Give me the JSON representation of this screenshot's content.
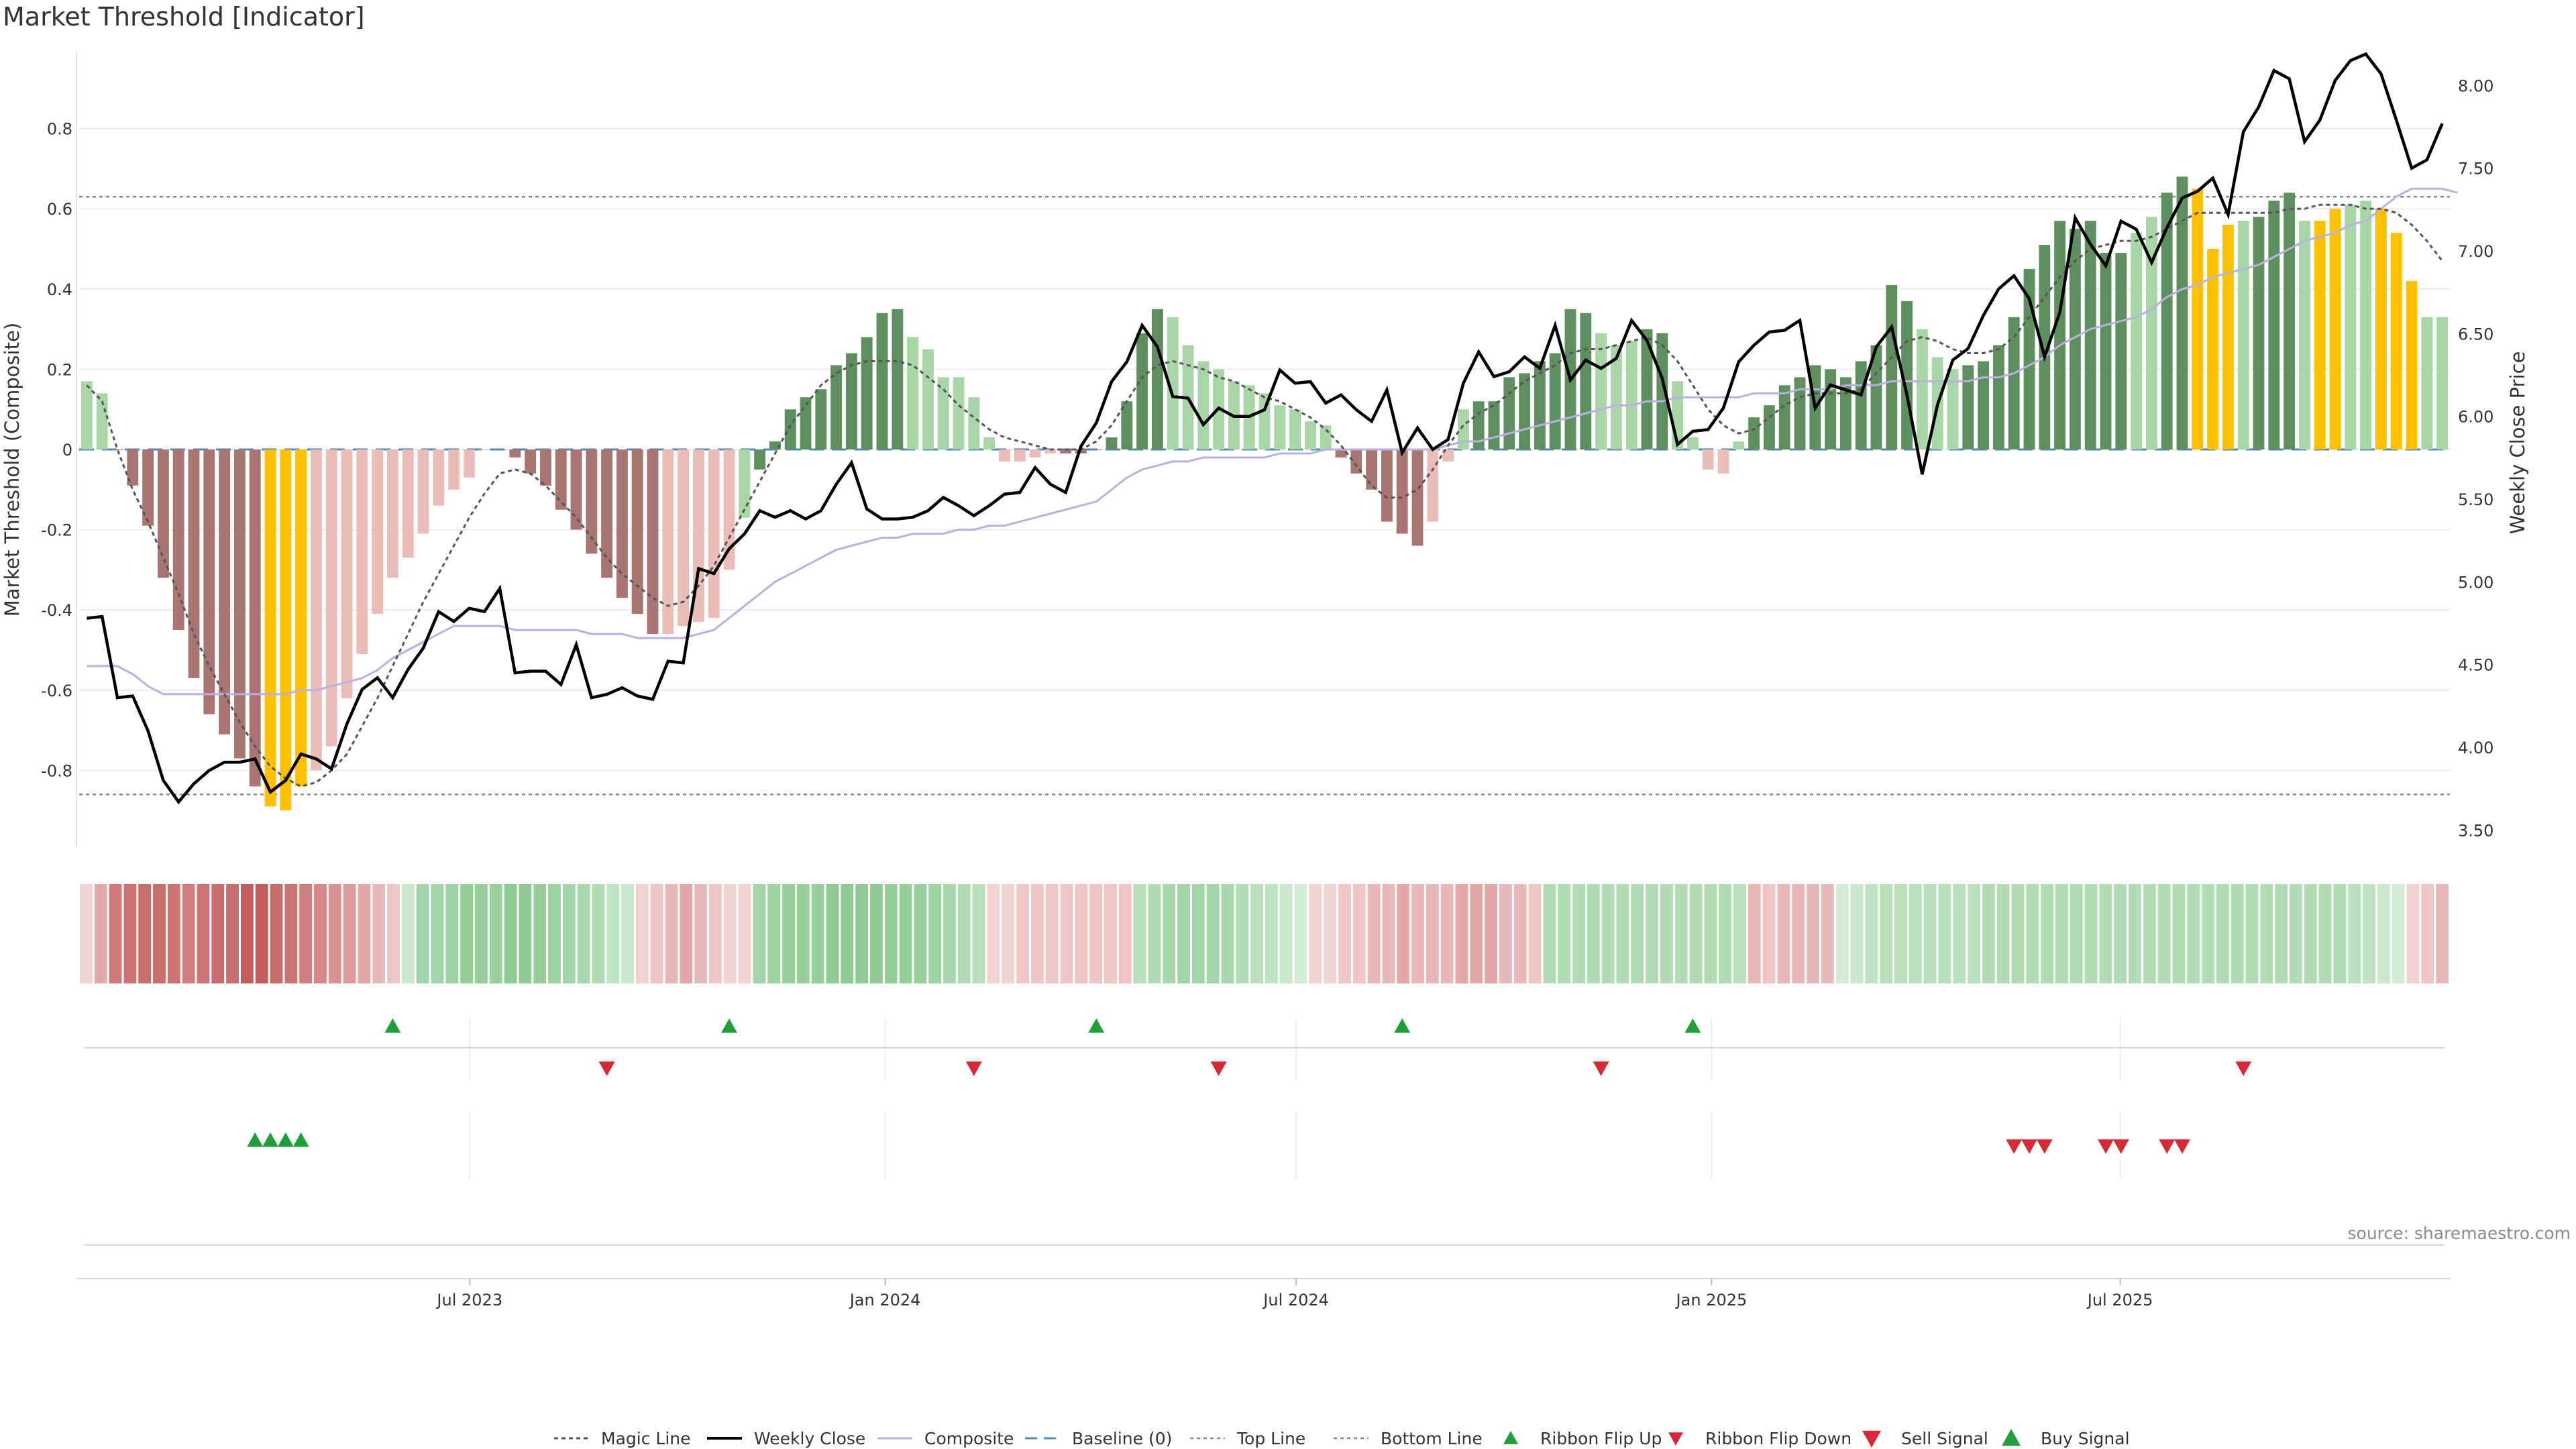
{
  "title": "Market Threshold [Indicator]",
  "source": "source: sharemaestro.com",
  "colors": {
    "bar_pos_strong": "#5f8f5f",
    "bar_pos_weak": "#a9d6a6",
    "bar_neg_strong": "#a87570",
    "bar_neg_weak": "#ebbdb7",
    "bar_extreme": "#ffc000",
    "magic_line": "#555555",
    "weekly_close": "#000000",
    "composite": "#b9b0e0",
    "baseline": "#4d89b8",
    "threshold_line": "#888888",
    "ribbon_up": "#1f9e3a",
    "ribbon_down": "#d62a36",
    "sell": "#d62a36",
    "buy": "#1f9e3a"
  },
  "legend": [
    {
      "key": "magic",
      "label": "Magic Line"
    },
    {
      "key": "close",
      "label": "Weekly Close"
    },
    {
      "key": "composite",
      "label": "Composite"
    },
    {
      "key": "baseline",
      "label": "Baseline (0)"
    },
    {
      "key": "top",
      "label": "Top Line"
    },
    {
      "key": "bottom",
      "label": "Bottom Line"
    },
    {
      "key": "ribbon_up",
      "label": "Ribbon Flip Up"
    },
    {
      "key": "ribbon_down",
      "label": "Ribbon Flip Down"
    },
    {
      "key": "sell",
      "label": "Sell Signal"
    },
    {
      "key": "buy",
      "label": "Buy Signal"
    }
  ],
  "chart_data": {
    "type": "bar",
    "title": "Market Threshold [Indicator]",
    "ylabel": "Market Threshold (Composite)",
    "y2label": "Weekly Close Price",
    "ylim": [
      -0.99,
      0.99
    ],
    "y2lim": [
      3.4,
      8.2
    ],
    "yticks": [
      "-0.8",
      "-0.6",
      "-0.4",
      "-0.2",
      "0",
      "0.2",
      "0.4",
      "0.6",
      "0.8"
    ],
    "y2ticks": [
      "3.50",
      "4.00",
      "4.50",
      "5.00",
      "5.50",
      "6.00",
      "6.50",
      "7.00",
      "7.50",
      "8.00"
    ],
    "x_start": "2023-01-09",
    "x_end": "2025-11-24",
    "xticks": [
      "Jul 2023",
      "Jan 2024",
      "Jul 2024",
      "Jan 2025",
      "Jul 2025"
    ],
    "top_line": 0.63,
    "bottom_line": -0.86,
    "baseline": 0,
    "grid": true,
    "legend_position": "bottom",
    "composite": [
      0.17,
      0.14,
      0.0,
      -0.09,
      -0.19,
      -0.32,
      -0.45,
      -0.57,
      -0.66,
      -0.71,
      -0.77,
      -0.84,
      -0.89,
      -0.9,
      -0.84,
      -0.8,
      -0.74,
      -0.62,
      -0.51,
      -0.41,
      -0.32,
      -0.27,
      -0.21,
      -0.14,
      -0.1,
      -0.07,
      -0.0,
      0.0,
      -0.02,
      -0.06,
      -0.09,
      -0.15,
      -0.2,
      -0.26,
      -0.32,
      -0.37,
      -0.41,
      -0.46,
      -0.46,
      -0.44,
      -0.43,
      -0.42,
      -0.3,
      -0.17,
      -0.05,
      0.02,
      0.1,
      0.13,
      0.15,
      0.21,
      0.24,
      0.28,
      0.34,
      0.35,
      0.28,
      0.25,
      0.18,
      0.18,
      0.13,
      0.03,
      -0.03,
      -0.03,
      -0.02,
      -0.01,
      -0.01,
      -0.01,
      0.0,
      0.03,
      0.12,
      0.29,
      0.35,
      0.33,
      0.26,
      0.22,
      0.2,
      0.17,
      0.16,
      0.14,
      0.11,
      0.1,
      0.07,
      0.06,
      -0.02,
      -0.06,
      -0.1,
      -0.18,
      -0.21,
      -0.24,
      -0.18,
      -0.03,
      0.1,
      0.12,
      0.12,
      0.18,
      0.19,
      0.22,
      0.24,
      0.35,
      0.34,
      0.29,
      0.26,
      0.27,
      0.3,
      0.29,
      0.17,
      0.03,
      -0.05,
      -0.06,
      0.02,
      0.08,
      0.11,
      0.16,
      0.18,
      0.21,
      0.2,
      0.18,
      0.22,
      0.26,
      0.41,
      0.37,
      0.3,
      0.23,
      0.2,
      0.21,
      0.22,
      0.26,
      0.33,
      0.45,
      0.51,
      0.57,
      0.55,
      0.57,
      0.49,
      0.49,
      0.54,
      0.58,
      0.64,
      0.68,
      0.65,
      0.5,
      0.56,
      0.57,
      0.58,
      0.62,
      0.64,
      0.57,
      0.57,
      0.6,
      0.61,
      0.62,
      0.6,
      0.54,
      0.42,
      0.33,
      0.33
    ],
    "bar_classes": [
      "w+",
      "w+",
      "s-",
      "s-",
      "s-",
      "s-",
      "s-",
      "s-",
      "s-",
      "s-",
      "s-",
      "s-",
      "ex",
      "ex",
      "ex",
      "w-",
      "w-",
      "w-",
      "w-",
      "w-",
      "w-",
      "w-",
      "w-",
      "w-",
      "w-",
      "w-",
      "w-",
      "s-",
      "s-",
      "s-",
      "s-",
      "s-",
      "s-",
      "s-",
      "s-",
      "s-",
      "s-",
      "s-",
      "w-",
      "w-",
      "w-",
      "w-",
      "w-",
      "w+",
      "s+",
      "s+",
      "s+",
      "s+",
      "s+",
      "s+",
      "s+",
      "s+",
      "s+",
      "s+",
      "w+",
      "w+",
      "w+",
      "w+",
      "w+",
      "w+",
      "w-",
      "w-",
      "w-",
      "w-",
      "s-",
      "s-",
      "s-",
      "s+",
      "s+",
      "s+",
      "s+",
      "w+",
      "w+",
      "w+",
      "w+",
      "w+",
      "w+",
      "w+",
      "w+",
      "w+",
      "w+",
      "w+",
      "s-",
      "s-",
      "s-",
      "s-",
      "s-",
      "s-",
      "w-",
      "w-",
      "w+",
      "s+",
      "s+",
      "s+",
      "s+",
      "s+",
      "s+",
      "s+",
      "s+",
      "w+",
      "w+",
      "w+",
      "s+",
      "s+",
      "w+",
      "w+",
      "w-",
      "w-",
      "w+",
      "s+",
      "s+",
      "s+",
      "s+",
      "s+",
      "s+",
      "s+",
      "s+",
      "s+",
      "s+",
      "s+",
      "w+",
      "w+",
      "w+",
      "s+",
      "s+",
      "s+",
      "s+",
      "s+",
      "s+",
      "s+",
      "s+",
      "s+",
      "s+",
      "s+",
      "w+",
      "w+",
      "s+",
      "s+",
      "ex",
      "ex",
      "ex",
      "w+",
      "s+",
      "s+",
      "s+",
      "w+",
      "ex",
      "ex",
      "w+",
      "w+",
      "ex",
      "ex",
      "ex",
      "w+",
      "w+",
      "w+",
      "w+",
      "s+"
    ],
    "magic_line": [
      0.16,
      0.12,
      0.0,
      -0.1,
      -0.18,
      -0.27,
      -0.36,
      -0.46,
      -0.54,
      -0.61,
      -0.68,
      -0.74,
      -0.79,
      -0.82,
      -0.84,
      -0.83,
      -0.8,
      -0.76,
      -0.69,
      -0.62,
      -0.54,
      -0.46,
      -0.38,
      -0.31,
      -0.24,
      -0.17,
      -0.11,
      -0.06,
      -0.05,
      -0.06,
      -0.09,
      -0.13,
      -0.17,
      -0.22,
      -0.27,
      -0.31,
      -0.34,
      -0.37,
      -0.39,
      -0.38,
      -0.34,
      -0.29,
      -0.22,
      -0.15,
      -0.08,
      -0.01,
      0.06,
      0.11,
      0.16,
      0.19,
      0.21,
      0.22,
      0.22,
      0.22,
      0.21,
      0.18,
      0.15,
      0.11,
      0.08,
      0.05,
      0.03,
      0.02,
      0.01,
      0.0,
      0.0,
      0.0,
      0.02,
      0.06,
      0.12,
      0.18,
      0.21,
      0.22,
      0.21,
      0.2,
      0.18,
      0.17,
      0.15,
      0.13,
      0.12,
      0.1,
      0.08,
      0.05,
      0.01,
      -0.04,
      -0.09,
      -0.12,
      -0.12,
      -0.1,
      -0.05,
      0.01,
      0.06,
      0.09,
      0.11,
      0.14,
      0.17,
      0.19,
      0.21,
      0.24,
      0.25,
      0.25,
      0.26,
      0.27,
      0.28,
      0.26,
      0.22,
      0.16,
      0.1,
      0.06,
      0.04,
      0.05,
      0.08,
      0.11,
      0.13,
      0.14,
      0.14,
      0.14,
      0.15,
      0.19,
      0.23,
      0.27,
      0.28,
      0.27,
      0.25,
      0.24,
      0.24,
      0.25,
      0.28,
      0.33,
      0.38,
      0.43,
      0.47,
      0.5,
      0.51,
      0.52,
      0.52,
      0.53,
      0.55,
      0.57,
      0.59,
      0.59,
      0.59,
      0.59,
      0.59,
      0.59,
      0.6,
      0.6,
      0.61,
      0.61,
      0.61,
      0.6,
      0.6,
      0.59,
      0.56,
      0.52,
      0.47
    ],
    "composite_line": [
      -0.54,
      -0.54,
      -0.54,
      -0.56,
      -0.59,
      -0.61,
      -0.61,
      -0.61,
      -0.61,
      -0.61,
      -0.61,
      -0.61,
      -0.61,
      -0.61,
      -0.6,
      -0.6,
      -0.59,
      -0.58,
      -0.57,
      -0.55,
      -0.52,
      -0.5,
      -0.48,
      -0.46,
      -0.44,
      -0.44,
      -0.44,
      -0.44,
      -0.45,
      -0.45,
      -0.45,
      -0.45,
      -0.45,
      -0.46,
      -0.46,
      -0.46,
      -0.47,
      -0.47,
      -0.47,
      -0.47,
      -0.46,
      -0.45,
      -0.42,
      -0.39,
      -0.36,
      -0.33,
      -0.31,
      -0.29,
      -0.27,
      -0.25,
      -0.24,
      -0.23,
      -0.22,
      -0.22,
      -0.21,
      -0.21,
      -0.21,
      -0.2,
      -0.2,
      -0.19,
      -0.19,
      -0.18,
      -0.17,
      -0.16,
      -0.15,
      -0.14,
      -0.13,
      -0.1,
      -0.07,
      -0.05,
      -0.04,
      -0.03,
      -0.03,
      -0.02,
      -0.02,
      -0.02,
      -0.02,
      -0.02,
      -0.01,
      -0.01,
      -0.01,
      -0.0,
      0.0,
      0.0,
      0.0,
      0.0,
      -0.0,
      -0.0,
      -0.0,
      0.01,
      0.02,
      0.02,
      0.03,
      0.04,
      0.05,
      0.06,
      0.07,
      0.08,
      0.09,
      0.1,
      0.11,
      0.11,
      0.12,
      0.12,
      0.13,
      0.13,
      0.13,
      0.13,
      0.13,
      0.14,
      0.14,
      0.14,
      0.15,
      0.15,
      0.15,
      0.16,
      0.16,
      0.16,
      0.17,
      0.17,
      0.17,
      0.17,
      0.17,
      0.17,
      0.18,
      0.18,
      0.19,
      0.21,
      0.23,
      0.26,
      0.28,
      0.3,
      0.31,
      0.32,
      0.33,
      0.35,
      0.38,
      0.4,
      0.41,
      0.43,
      0.44,
      0.45,
      0.46,
      0.48,
      0.5,
      0.52,
      0.53,
      0.54,
      0.56,
      0.57,
      0.6,
      0.63,
      0.65,
      0.65,
      0.65,
      0.64
    ],
    "weekly_close": [
      4.78,
      4.79,
      4.3,
      4.31,
      4.1,
      3.8,
      3.67,
      3.78,
      3.86,
      3.91,
      3.91,
      3.93,
      3.73,
      3.8,
      3.96,
      3.93,
      3.87,
      4.14,
      4.35,
      4.42,
      4.3,
      4.47,
      4.6,
      4.82,
      4.76,
      4.84,
      4.82,
      4.96,
      4.45,
      4.46,
      4.46,
      4.38,
      4.62,
      4.3,
      4.32,
      4.36,
      4.31,
      4.29,
      4.52,
      4.51,
      5.08,
      5.05,
      5.2,
      5.29,
      5.43,
      5.39,
      5.43,
      5.38,
      5.43,
      5.59,
      5.72,
      5.44,
      5.38,
      5.38,
      5.39,
      5.43,
      5.51,
      5.46,
      5.4,
      5.46,
      5.53,
      5.54,
      5.69,
      5.59,
      5.54,
      5.82,
      5.96,
      6.21,
      6.33,
      6.55,
      6.42,
      6.12,
      6.11,
      5.95,
      6.05,
      6.0,
      6.0,
      6.04,
      6.28,
      6.2,
      6.21,
      6.08,
      6.13,
      6.04,
      5.97,
      6.16,
      5.78,
      5.93,
      5.8,
      5.86,
      6.2,
      6.39,
      6.24,
      6.27,
      6.36,
      6.29,
      6.55,
      6.22,
      6.34,
      6.29,
      6.35,
      6.58,
      6.46,
      6.23,
      5.83,
      5.91,
      5.92,
      6.05,
      6.33,
      6.43,
      6.51,
      6.52,
      6.58,
      6.05,
      6.19,
      6.16,
      6.13,
      6.42,
      6.54,
      6.13,
      5.65,
      6.07,
      6.34,
      6.41,
      6.61,
      6.77,
      6.85,
      6.71,
      6.36,
      6.63,
      7.2,
      7.04,
      6.91,
      7.18,
      7.13,
      6.93,
      7.14,
      7.32,
      7.36,
      7.44,
      7.22,
      7.72,
      7.87,
      8.09,
      8.04,
      7.66,
      7.79,
      8.03,
      8.15,
      8.19,
      8.07,
      7.79,
      7.5,
      7.55,
      7.77
    ]
  },
  "ribbon": {
    "colors": [
      "#f0d2d0",
      "#e2a9a7",
      "#cf7b7b",
      "#cc7474",
      "#c86c6c",
      "#c96e6e",
      "#cc7474",
      "#d07e7e",
      "#cc7474",
      "#c96e6e",
      "#c86c6c",
      "#c45e5e",
      "#c35d5d",
      "#c86c6c",
      "#cc7474",
      "#d07e7e",
      "#d48888",
      "#d89292",
      "#dd9c9c",
      "#e2a9a7",
      "#e8b9b8",
      "#edc6c5",
      "#c9e7cb",
      "#a2d5a7",
      "#a2d5a7",
      "#9ed3a3",
      "#96cf9a",
      "#96cf9a",
      "#99d19e",
      "#8ecb93",
      "#8ecb93",
      "#96cf9a",
      "#9dd2a1",
      "#a2d5a7",
      "#a9d8ad",
      "#b1dcb4",
      "#c0e3c2",
      "#c9e7cb",
      "#f0d2d0",
      "#edc6c5",
      "#e8b9b8",
      "#e2a9a7",
      "#e8b9b8",
      "#edc6c5",
      "#f0d2d0",
      "#f0d2d0",
      "#a2d5a7",
      "#9dd2a1",
      "#99d19e",
      "#96cf9a",
      "#96cf9a",
      "#8ecb93",
      "#8ecb93",
      "#8ecb93",
      "#8ecb93",
      "#96cf9a",
      "#96cf9a",
      "#99d19e",
      "#9dd2a1",
      "#a9d8ad",
      "#b1dcb4",
      "#b9e0bb",
      "#f0d2d0",
      "#f0d2d0",
      "#edc6c5",
      "#edc6c5",
      "#edc6c5",
      "#edc6c5",
      "#edc6c5",
      "#edc6c5",
      "#edc6c5",
      "#edc6c5",
      "#b9e0bb",
      "#b1dcb4",
      "#a9d8ad",
      "#a2d5a7",
      "#a2d5a7",
      "#a2d5a7",
      "#a9d8ad",
      "#b1dcb4",
      "#b9e0bb",
      "#c0e3c2",
      "#c9e7cb",
      "#d2ebd3",
      "#f0d2d0",
      "#f0d2d0",
      "#edc6c5",
      "#edc6c5",
      "#e8b9b8",
      "#e8b9b8",
      "#e2a9a7",
      "#e8b9b8",
      "#e8b9b8",
      "#e8b9b8",
      "#e2a9a7",
      "#e2a9a7",
      "#e2a9a7",
      "#e8b9b8",
      "#e8b9b8",
      "#edc6c5",
      "#b1dcb4",
      "#b1dcb4",
      "#b1dcb4",
      "#b1dcb4",
      "#b1dcb4",
      "#b1dcb4",
      "#b1dcb4",
      "#b1dcb4",
      "#b1dcb4",
      "#b1dcb4",
      "#b1dcb4",
      "#b1dcb4",
      "#b1dcb4",
      "#b9e0bb",
      "#e8b9b8",
      "#edc6c5",
      "#e8b9b8",
      "#e8b9b8",
      "#e8b9b8",
      "#e8b9b8",
      "#d2ebd3",
      "#c9e7cb",
      "#c0e3c2",
      "#b9e0bb",
      "#b9e0bb",
      "#b9e0bb",
      "#b9e0bb",
      "#b9e0bb",
      "#b9e0bb",
      "#b9e0bb",
      "#b1dcb4",
      "#b1dcb4",
      "#b1dcb4",
      "#b1dcb4",
      "#b1dcb4",
      "#b1dcb4",
      "#b1dcb4",
      "#b1dcb4",
      "#b1dcb4",
      "#b1dcb4",
      "#b1dcb4",
      "#b1dcb4",
      "#b1dcb4",
      "#b1dcb4",
      "#b1dcb4",
      "#b1dcb4",
      "#b1dcb4",
      "#b1dcb4",
      "#b1dcb4",
      "#b1dcb4",
      "#b1dcb4",
      "#b1dcb4",
      "#b1dcb4",
      "#b1dcb4",
      "#b1dcb4",
      "#b9e0bb",
      "#c0e3c2",
      "#c9e7cb",
      "#d2ebd3",
      "#f0d2d0",
      "#edc6c5",
      "#e8b9b8"
    ]
  },
  "signals": {
    "ribbon_flip_up": [
      20,
      42,
      66,
      86,
      105
    ],
    "ribbon_flip_down": [
      34,
      58,
      74,
      99,
      141
    ],
    "buy": [
      11,
      12,
      13,
      14
    ],
    "sell": [
      126,
      127,
      128,
      132,
      133,
      136,
      137
    ]
  }
}
